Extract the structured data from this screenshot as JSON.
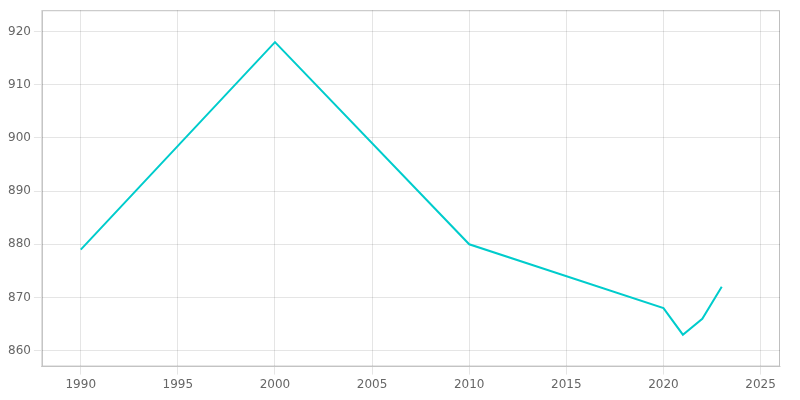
{
  "chart_data": {
    "type": "line",
    "x": [
      1990,
      2000,
      2010,
      2020,
      2021,
      2022,
      2023
    ],
    "values": [
      879,
      918,
      880,
      868,
      863,
      866,
      872
    ],
    "color": "#00CCCC",
    "xlim": [
      1988,
      2026
    ],
    "xticks": [
      1990,
      1995,
      2000,
      2005,
      2010,
      2015,
      2020,
      2025
    ],
    "ylim": [
      857,
      924
    ],
    "yticks": [
      860,
      870,
      880,
      890,
      900,
      910,
      920
    ],
    "grid": true
  }
}
